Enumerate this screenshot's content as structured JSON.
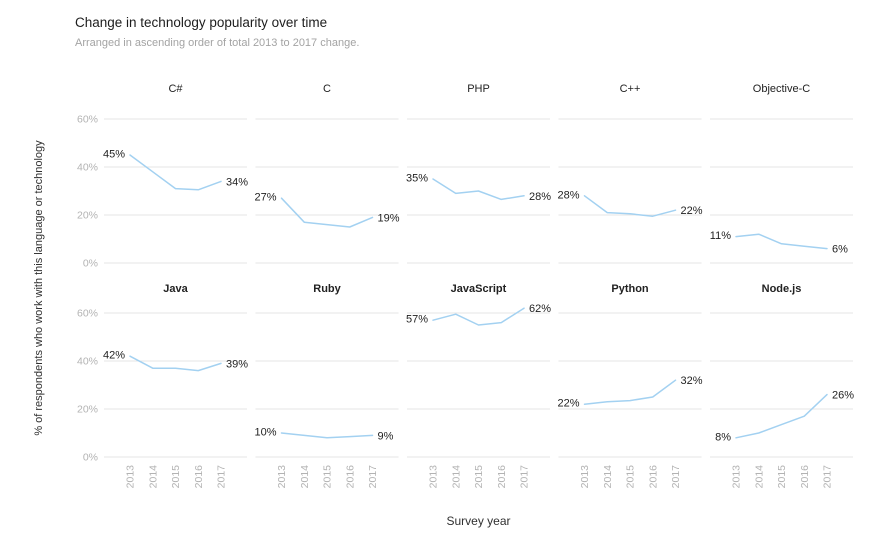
{
  "header": {
    "title": "Change in technology popularity over time",
    "subtitle": "Arranged in ascending order of total 2013 to 2017 change."
  },
  "axes": {
    "x_title": "Survey year",
    "y_title": "% of respondents who work with this language or technology",
    "x_ticks": [
      "2013",
      "2014",
      "2015",
      "2016",
      "2017"
    ],
    "y_ticks": [
      {
        "label": "0%",
        "value": 0
      },
      {
        "label": "20%",
        "value": 20
      },
      {
        "label": "40%",
        "value": 40
      },
      {
        "label": "60%",
        "value": 60
      }
    ],
    "ylim": [
      0,
      60
    ],
    "grid": "horizontal-only",
    "legend": "none"
  },
  "chart_data": {
    "type": "line",
    "layout": "facet-grid 2 rows x 5 cols, ordered by ascending total change",
    "x": [
      2013,
      2014,
      2015,
      2016,
      2017
    ],
    "series": [
      {
        "name": "C#",
        "row": 0,
        "col": 0,
        "values": [
          45,
          38,
          31,
          30.5,
          34
        ],
        "start_label": "45%",
        "end_label": "34%"
      },
      {
        "name": "C",
        "row": 0,
        "col": 1,
        "values": [
          27,
          17,
          16,
          15,
          19
        ],
        "start_label": "27%",
        "end_label": "19%"
      },
      {
        "name": "PHP",
        "row": 0,
        "col": 2,
        "values": [
          35,
          29,
          30,
          26.5,
          28
        ],
        "start_label": "35%",
        "end_label": "28%"
      },
      {
        "name": "C++",
        "row": 0,
        "col": 3,
        "values": [
          28,
          21,
          20.5,
          19.5,
          22
        ],
        "start_label": "28%",
        "end_label": "22%"
      },
      {
        "name": "Objective-C",
        "row": 0,
        "col": 4,
        "values": [
          11,
          12,
          8,
          7,
          6
        ],
        "start_label": "11%",
        "end_label": "6%"
      },
      {
        "name": "Java",
        "row": 1,
        "col": 0,
        "values": [
          42,
          37,
          37,
          36,
          39
        ],
        "start_label": "42%",
        "end_label": "39%"
      },
      {
        "name": "Ruby",
        "row": 1,
        "col": 1,
        "values": [
          10,
          9,
          8,
          8.5,
          9
        ],
        "start_label": "10%",
        "end_label": "9%"
      },
      {
        "name": "JavaScript",
        "row": 1,
        "col": 2,
        "values": [
          57,
          59.5,
          55,
          56,
          62
        ],
        "start_label": "57%",
        "end_label": "62%"
      },
      {
        "name": "Python",
        "row": 1,
        "col": 3,
        "values": [
          22,
          23,
          23.5,
          25,
          32
        ],
        "start_label": "22%",
        "end_label": "32%"
      },
      {
        "name": "Node.js",
        "row": 1,
        "col": 4,
        "values": [
          8,
          10,
          13.5,
          17,
          26
        ],
        "start_label": "8%",
        "end_label": "26%"
      }
    ],
    "colors": {
      "line": "#a3d1f1",
      "grid": "#e5e5e5",
      "tick_label": "#b3b3b3",
      "panel_title": "#222222",
      "value_label": "#1f1f1f"
    }
  }
}
